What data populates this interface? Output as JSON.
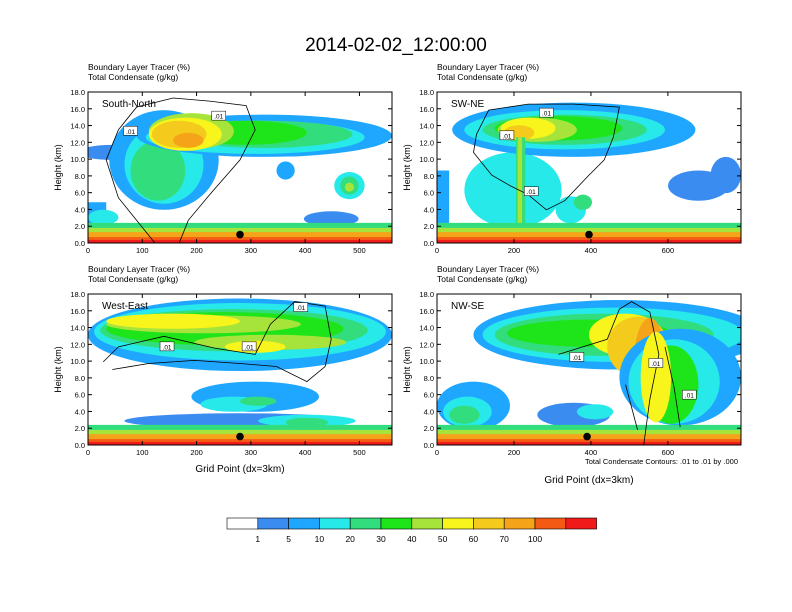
{
  "title": "2014-02-02_12:00:00",
  "panel_header_line1": "Boundary Layer Tracer    (%)",
  "panel_header_line2": "Total Condensate    (g/kg)",
  "ylabel": "Height (km)",
  "xlabel": "Grid Point (dx=3km)",
  "contour_note": "Total Condensate Contours: .01 to .01 by .000",
  "contour_label": ".01",
  "colors": {
    "levels": [
      "#ffffff",
      "#3a8cf0",
      "#1fa7ff",
      "#27e9ea",
      "#31dd7c",
      "#1ee51a",
      "#a7e43b",
      "#f7f51c",
      "#f4ca1c",
      "#f5a41a",
      "#f55a14",
      "#f01a1a"
    ]
  },
  "chart_data": [
    {
      "type": "heatmap",
      "name": "South-North",
      "xlim": [
        0,
        560
      ],
      "xticks": [
        "0",
        "100",
        "200",
        "300",
        "400",
        "500"
      ],
      "ylim": [
        0,
        18
      ],
      "yticks": [
        "0.0",
        "2.0",
        "4.0",
        "6.0",
        "8.0",
        "10.0",
        "12.0",
        "14.0",
        "16.0",
        "18.0"
      ],
      "marker": {
        "x": 280,
        "y": 1.0
      }
    },
    {
      "type": "heatmap",
      "name": "SW-NE",
      "xlim": [
        0,
        790
      ],
      "xticks": [
        "0",
        "200",
        "400",
        "600"
      ],
      "ylim": [
        0,
        18
      ],
      "yticks": [
        "0.0",
        "2.0",
        "4.0",
        "6.0",
        "8.0",
        "10.0",
        "12.0",
        "14.0",
        "16.0",
        "18.0"
      ],
      "marker": {
        "x": 395,
        "y": 1.0
      }
    },
    {
      "type": "heatmap",
      "name": "West-East",
      "xlim": [
        0,
        560
      ],
      "xticks": [
        "0",
        "100",
        "200",
        "300",
        "400",
        "500"
      ],
      "ylim": [
        0,
        18
      ],
      "yticks": [
        "0.0",
        "2.0",
        "4.0",
        "6.0",
        "8.0",
        "10.0",
        "12.0",
        "14.0",
        "16.0",
        "18.0"
      ],
      "marker": {
        "x": 280,
        "y": 1.0
      }
    },
    {
      "type": "heatmap",
      "name": "NW-SE",
      "xlim": [
        0,
        790
      ],
      "xticks": [
        "0",
        "200",
        "400",
        "600"
      ],
      "ylim": [
        0,
        18
      ],
      "yticks": [
        "0.0",
        "2.0",
        "4.0",
        "6.0",
        "8.0",
        "10.0",
        "12.0",
        "14.0",
        "16.0",
        "18.0"
      ],
      "marker": {
        "x": 390,
        "y": 1.0
      }
    }
  ],
  "colorbar_labels": [
    "1",
    "5",
    "10",
    "20",
    "30",
    "40",
    "50",
    "60",
    "70",
    "100"
  ]
}
